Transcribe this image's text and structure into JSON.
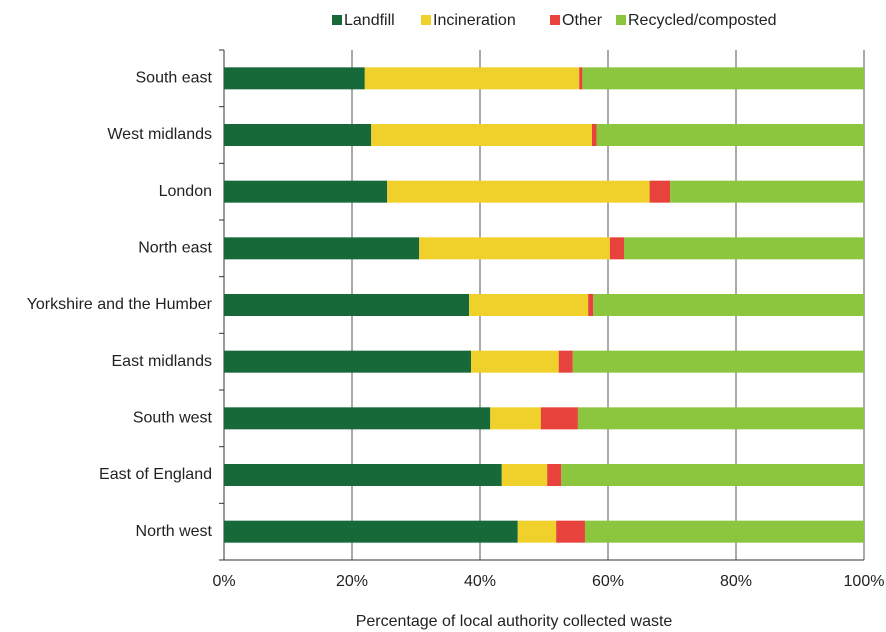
{
  "chart_data": {
    "type": "bar",
    "orientation": "horizontal",
    "stacked": true,
    "xlabel": "Percentage of local authority collected waste",
    "categories": [
      "South east",
      "West midlands",
      "London",
      "North east",
      "Yorkshire and the Humber",
      "East midlands",
      "South west",
      "East of England",
      "North west"
    ],
    "series": [
      {
        "name": "Landfill",
        "color": "#17693a",
        "values": [
          22,
          23,
          25.5,
          30.5,
          38.3,
          38.6,
          41.6,
          43.4,
          45.9
        ]
      },
      {
        "name": "Incineration",
        "color": "#f0d02a",
        "values": [
          33.5,
          34.5,
          41,
          29.8,
          18.6,
          13.7,
          7.9,
          7.1,
          6
        ]
      },
      {
        "name": "Other",
        "color": "#e8423c",
        "values": [
          0.5,
          0.7,
          3.2,
          2.2,
          0.8,
          2.2,
          5.8,
          2.2,
          4.5
        ]
      },
      {
        "name": "Recycled/composted",
        "color": "#8cc63f",
        "values": [
          44,
          41.8,
          30.3,
          37.5,
          42.3,
          45.5,
          44.7,
          47.3,
          43.6
        ]
      }
    ],
    "xlim": [
      0,
      100
    ],
    "xticks": [
      {
        "value": 0,
        "label": "0%"
      },
      {
        "value": 20,
        "label": "20%"
      },
      {
        "value": 40,
        "label": "40%"
      },
      {
        "value": 60,
        "label": "60%"
      },
      {
        "value": 80,
        "label": "80%"
      },
      {
        "value": 100,
        "label": "100%"
      }
    ],
    "grid": true,
    "legend": "top"
  }
}
